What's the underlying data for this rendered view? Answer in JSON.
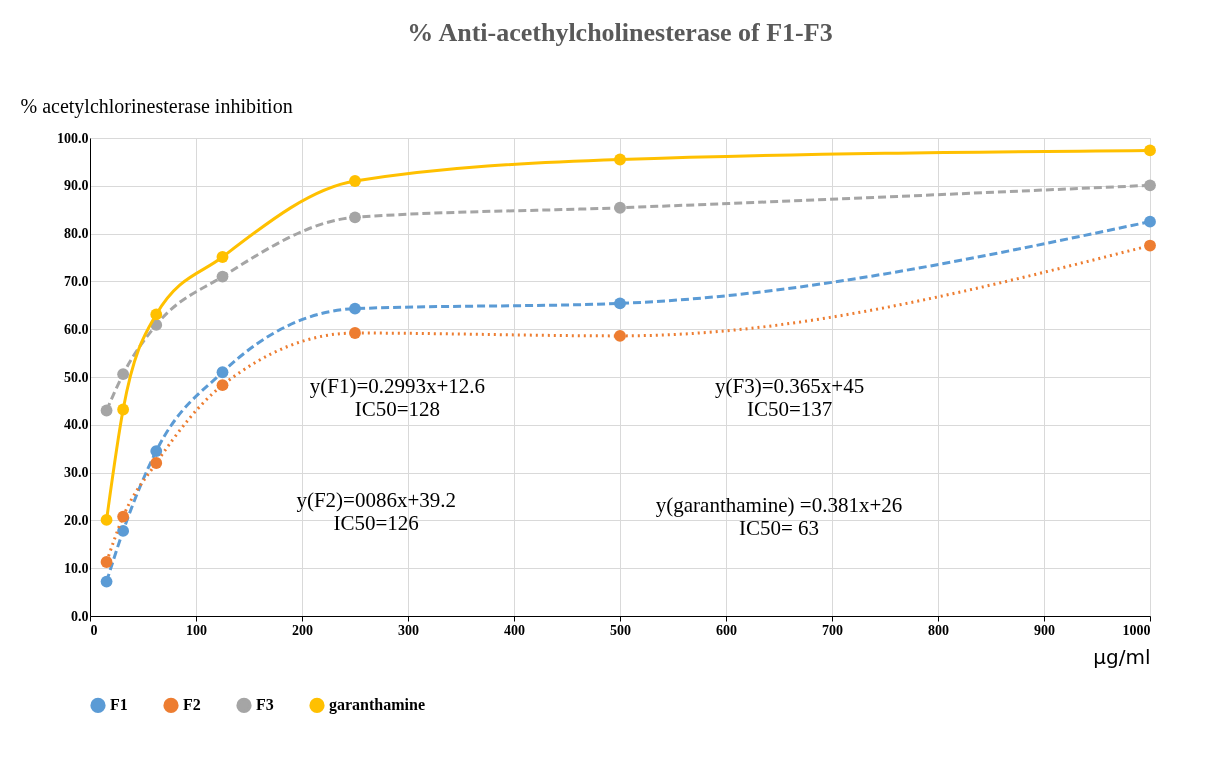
{
  "chart_data": {
    "type": "line",
    "title": "% Anti-acethylcholinesterase  of F1-F3",
    "ylabel": "% acetylchlorinesterase inhibition",
    "xlabel": "μg/ml",
    "x": [
      15.625,
      31.25,
      62.5,
      125,
      250,
      500,
      1000
    ],
    "series": [
      {
        "name": "F1",
        "color": "#5b9bd5",
        "line_style": "dashed",
        "values": [
          7.2,
          17.8,
          34.5,
          51.0,
          64.3,
          65.4,
          82.5
        ]
      },
      {
        "name": "F2",
        "color": "#ed7d31",
        "line_style": "dotted",
        "values": [
          11.3,
          20.8,
          32.0,
          48.3,
          59.2,
          58.6,
          77.5
        ]
      },
      {
        "name": "F3",
        "color": "#a5a5a5",
        "line_style": "dashed",
        "values": [
          43.0,
          50.6,
          60.9,
          71.0,
          83.4,
          85.4,
          90.1
        ]
      },
      {
        "name": "garanthamine",
        "color": "#ffc000",
        "line_style": "solid",
        "values": [
          20.1,
          43.2,
          63.1,
          75.1,
          91.0,
          95.5,
          97.4
        ]
      }
    ],
    "xlim": [
      0,
      1000
    ],
    "xticks": [
      0,
      100,
      200,
      300,
      400,
      500,
      600,
      700,
      800,
      900,
      1000
    ],
    "ylim": [
      0,
      100
    ],
    "yticks": [
      {
        "value": 0,
        "label": "0.0"
      },
      {
        "value": 10,
        "label": "10.0"
      },
      {
        "value": 20,
        "label": "20.0"
      },
      {
        "value": 30,
        "label": "30.0"
      },
      {
        "value": 40,
        "label": "40.0"
      },
      {
        "value": 50,
        "label": "50.0"
      },
      {
        "value": 60,
        "label": "60.0"
      },
      {
        "value": 70,
        "label": "70.0"
      },
      {
        "value": 80,
        "label": "80.0"
      },
      {
        "value": 90,
        "label": "90.0"
      },
      {
        "value": 100,
        "label": "100.0"
      }
    ],
    "annotations": [
      "y(F1)=0.2993x+12.6\nIC50=128",
      "y(F3)=0.365x+45\nIC50=137",
      "y(F2)=0086x+39.2\nIC50=126",
      "y(garanthamine) =0.381x+26\nIC50= 63"
    ],
    "grid": true,
    "legend": "bottom",
    "marker": "circle"
  }
}
